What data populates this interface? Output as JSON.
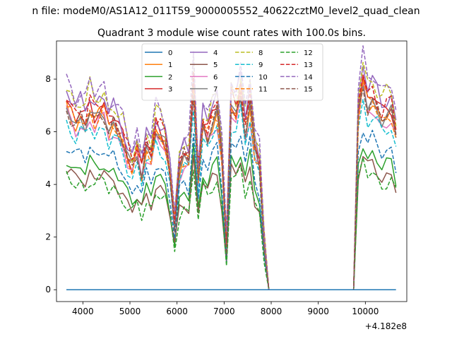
{
  "figure": {
    "suptitle": "n file: modeM0/AS1A12_011T59_9000005552_40622cztM0_level2_quad_clean",
    "offset_label": "+4.182e8"
  },
  "chart_data": {
    "type": "line",
    "title": "Quadrant 3 module wise count rates with 100.0s bins.",
    "xlabel": "",
    "ylabel": "",
    "xlim": [
      3440,
      10880
    ],
    "ylim": [
      -0.45,
      9.45
    ],
    "xticks": [
      4000,
      5000,
      6000,
      7000,
      8000,
      9000,
      10000
    ],
    "yticks": [
      0,
      2,
      4,
      6,
      8
    ],
    "grid": false,
    "legend": {
      "placement": "top-center",
      "columns": 4
    },
    "x": [
      3650,
      3750,
      3850,
      3950,
      4050,
      4150,
      4250,
      4350,
      4450,
      4550,
      4650,
      4750,
      4850,
      4950,
      5050,
      5150,
      5250,
      5350,
      5450,
      5550,
      5650,
      5750,
      5850,
      5950,
      6050,
      6150,
      6250,
      6350,
      6450,
      6550,
      6650,
      6750,
      6850,
      6950,
      7050,
      7150,
      7250,
      7350,
      7450,
      7550,
      7650,
      7750,
      7850,
      7950,
      8050,
      8150,
      8250,
      8350,
      8450,
      8550,
      8650,
      8750,
      8850,
      8950,
      9050,
      9150,
      9250,
      9350,
      9450,
      9550,
      9650,
      9750,
      9850,
      9950,
      10050,
      10150,
      10250,
      10350,
      10450,
      10550,
      10650
    ],
    "gap": {
      "x_from": 7950,
      "x_to": 9750
    },
    "base_profile": [
      6.9,
      6.6,
      6.3,
      6.5,
      6.2,
      6.8,
      6.4,
      6.6,
      6.7,
      6.1,
      6.3,
      5.9,
      5.6,
      5.0,
      4.6,
      5.2,
      4.5,
      5.4,
      5.0,
      6.0,
      5.8,
      5.5,
      4.3,
      2.5,
      4.6,
      5.0,
      4.8,
      7.6,
      4.2,
      6.2,
      5.8,
      6.4,
      6.7,
      5.0,
      1.6,
      6.9,
      6.6,
      7.4,
      6.0,
      7.0,
      5.2,
      4.7,
      1.8,
      0,
      0,
      0,
      0,
      0,
      0,
      0,
      0,
      0,
      0,
      0,
      0,
      0,
      0,
      0,
      0,
      0,
      0,
      0,
      6.6,
      7.8,
      7.0,
      7.2,
      6.8,
      6.4,
      6.6,
      6.7,
      5.8
    ],
    "series": [
      {
        "name": "0",
        "color": "#1f77b4",
        "dash": "solid",
        "scale": 0.0,
        "wiggle": 0.0
      },
      {
        "name": "1",
        "color": "#ff7f0e",
        "dash": "solid",
        "scale": 1.0,
        "wiggle": 0.25
      },
      {
        "name": "2",
        "color": "#2ca02c",
        "dash": "solid",
        "scale": 0.72,
        "wiggle": 0.2
      },
      {
        "name": "3",
        "color": "#d62728",
        "dash": "solid",
        "scale": 1.04,
        "wiggle": 0.25
      },
      {
        "name": "4",
        "color": "#9467bd",
        "dash": "solid",
        "scale": 1.1,
        "wiggle": 0.25
      },
      {
        "name": "5",
        "color": "#8c564b",
        "dash": "solid",
        "scale": 0.66,
        "wiggle": 0.2
      },
      {
        "name": "6",
        "color": "#e377c2",
        "dash": "solid",
        "scale": 0.96,
        "wiggle": 0.25
      },
      {
        "name": "7",
        "color": "#7f7f7f",
        "dash": "solid",
        "scale": 1.0,
        "wiggle": 0.2
      },
      {
        "name": "8",
        "color": "#bcbd22",
        "dash": "dashed",
        "scale": 1.12,
        "wiggle": 0.3
      },
      {
        "name": "9",
        "color": "#17becf",
        "dash": "dashed",
        "scale": 0.92,
        "wiggle": 0.25
      },
      {
        "name": "10",
        "color": "#1f77b4",
        "dash": "dashed",
        "scale": 0.8,
        "wiggle": 0.2
      },
      {
        "name": "11",
        "color": "#ff7f0e",
        "dash": "dashed",
        "scale": 1.0,
        "wiggle": 0.25
      },
      {
        "name": "12",
        "color": "#2ca02c",
        "dash": "dashed",
        "scale": 0.62,
        "wiggle": 0.2
      },
      {
        "name": "13",
        "color": "#d62728",
        "dash": "dashed",
        "scale": 1.06,
        "wiggle": 0.25
      },
      {
        "name": "14",
        "color": "#9467bd",
        "dash": "dashed",
        "scale": 1.16,
        "wiggle": 0.25
      },
      {
        "name": "15",
        "color": "#8c564b",
        "dash": "dashed",
        "scale": 1.0,
        "wiggle": 0.25
      }
    ]
  }
}
